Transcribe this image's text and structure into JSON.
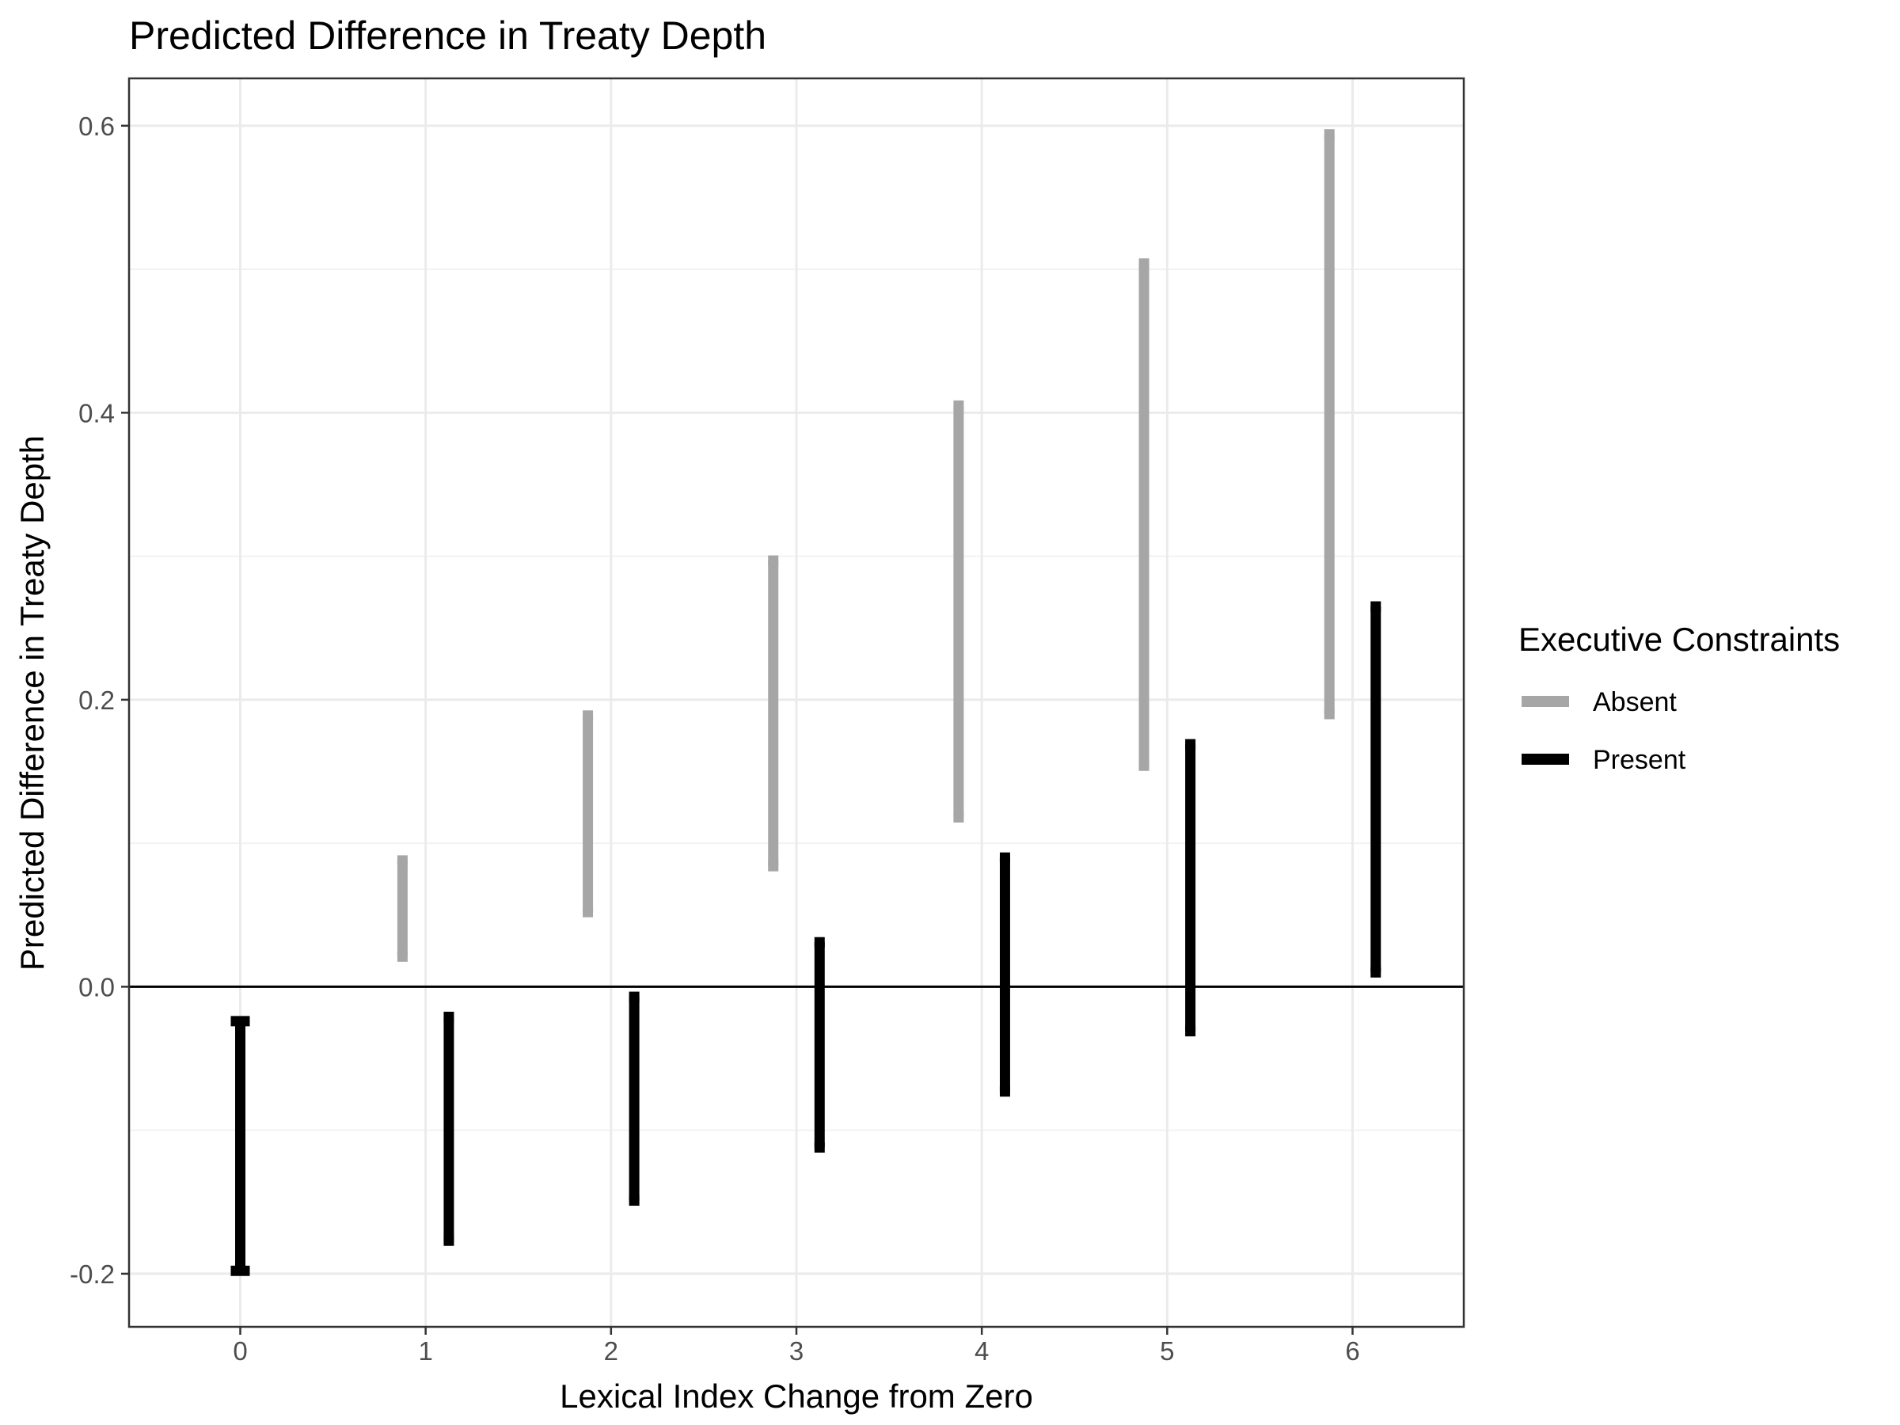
{
  "chart_data": {
    "type": "errorbar",
    "title": "Predicted Difference in Treaty Depth",
    "xlabel": "Lexical Index Change from Zero",
    "ylabel": "Predicted Difference in Treaty Depth",
    "x_ticks": [
      0,
      1,
      2,
      3,
      4,
      5,
      6
    ],
    "y_ticks": [
      -0.2,
      0.0,
      0.2,
      0.4,
      0.6
    ],
    "y_tick_labels": [
      "-0.2",
      "0.0",
      "0.2",
      "0.4",
      "0.6"
    ],
    "xlim": [
      -0.6,
      6.6
    ],
    "ylim": [
      -0.237,
      0.633
    ],
    "reference_line_y": 0.0,
    "grid": true,
    "legend": {
      "title": "Executive Constraints",
      "position": "right"
    },
    "series": [
      {
        "name": "Absent",
        "color": "#a6a6a6",
        "x": [
          1,
          2,
          3,
          4,
          5,
          6
        ],
        "lower": [
          0.021,
          0.052,
          0.084,
          0.118,
          0.154,
          0.19
        ],
        "upper": [
          0.088,
          0.189,
          0.297,
          0.405,
          0.504,
          0.594
        ]
      },
      {
        "name": "Present",
        "color": "#000000",
        "x": [
          0,
          1,
          2,
          3,
          4,
          5,
          6
        ],
        "lower": [
          -0.198,
          -0.177,
          -0.149,
          -0.112,
          -0.073,
          -0.031,
          0.01
        ],
        "upper": [
          -0.024,
          -0.021,
          -0.007,
          0.031,
          0.09,
          0.169,
          0.265
        ]
      }
    ]
  }
}
